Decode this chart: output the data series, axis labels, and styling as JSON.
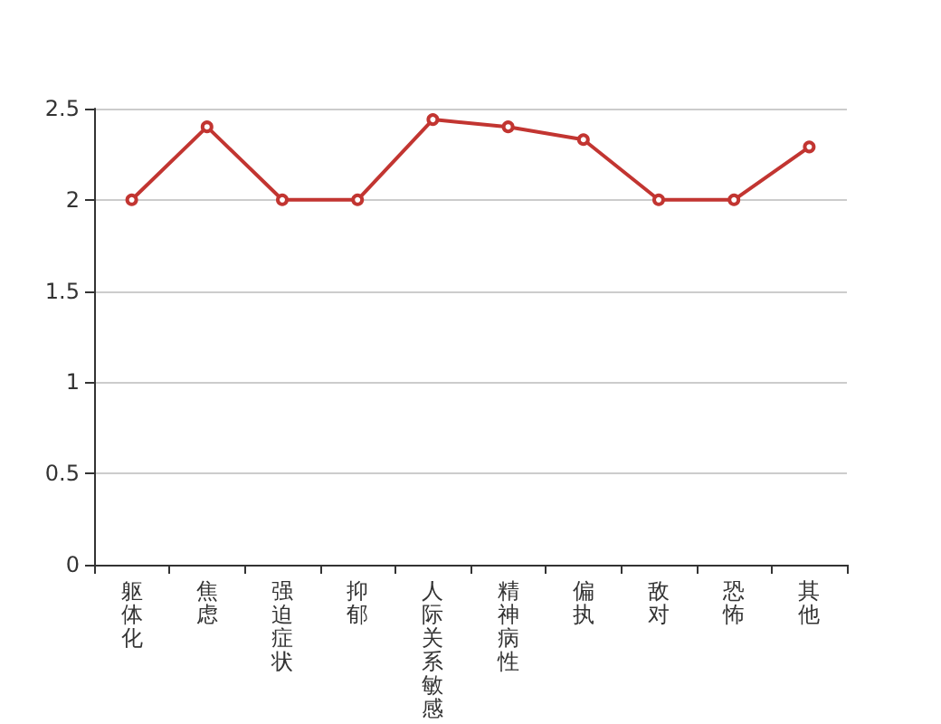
{
  "chart_data": {
    "type": "line",
    "categories": [
      "躯体化",
      "焦虑",
      "强迫症状",
      "抑郁",
      "人际关系敏感",
      "精神病性",
      "偏执",
      "敌对",
      "恐怖",
      "其他"
    ],
    "series": [
      {
        "color": "#c23531",
        "values": [
          2,
          2.4,
          2,
          2,
          2.44,
          2.4,
          2.33,
          2,
          2,
          2.29
        ]
      }
    ],
    "ylim": [
      0,
      2.5
    ],
    "yticks": [
      0,
      0.5,
      1,
      1.5,
      2,
      2.5
    ],
    "grid": "y",
    "marker": "circle"
  }
}
